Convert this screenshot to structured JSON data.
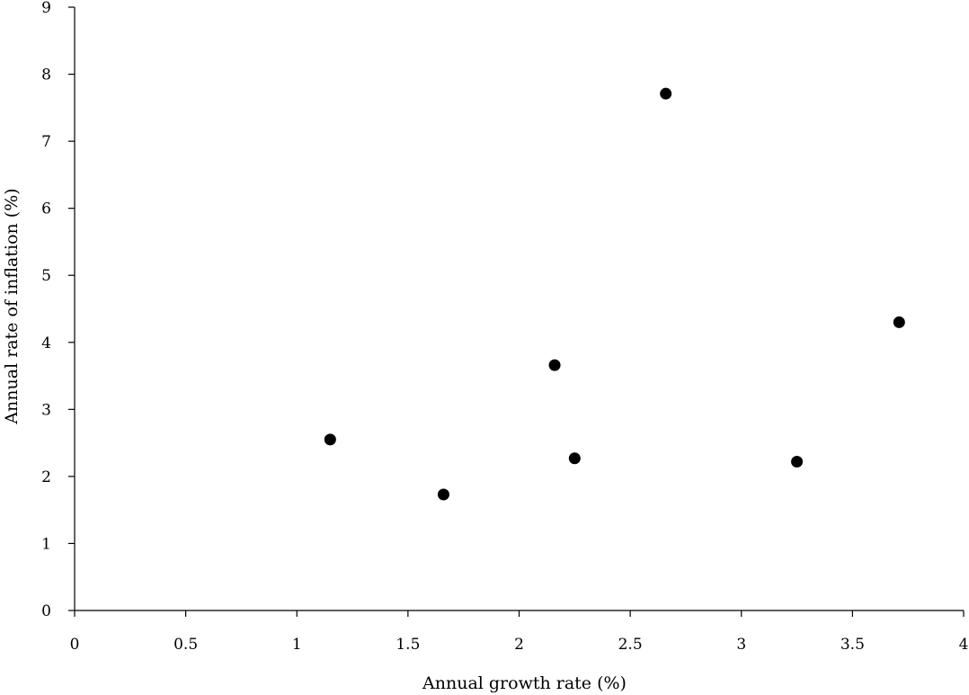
{
  "chart_data": {
    "type": "scatter",
    "title": "",
    "xlabel": "Annual growth rate (%)",
    "ylabel": "Annual rate of inflation (%)",
    "xlim": [
      0,
      4
    ],
    "ylim": [
      0,
      9
    ],
    "x_ticks": [
      0,
      0.5,
      1,
      1.5,
      2,
      2.5,
      3,
      3.5,
      4
    ],
    "x_tick_labels": [
      "0",
      "0.5",
      "1",
      "1.5",
      "2",
      "2.5",
      "3",
      "3.5",
      "4"
    ],
    "y_ticks": [
      0,
      1,
      2,
      3,
      4,
      5,
      6,
      7,
      8,
      9
    ],
    "y_tick_labels": [
      "0",
      "1",
      "2",
      "3",
      "4",
      "5",
      "6",
      "7",
      "8",
      "9"
    ],
    "grid": false,
    "legend": "none",
    "marker_color": "#000000",
    "points": [
      {
        "x": 1.15,
        "y": 2.55
      },
      {
        "x": 1.66,
        "y": 1.73
      },
      {
        "x": 2.16,
        "y": 3.66
      },
      {
        "x": 2.25,
        "y": 2.27
      },
      {
        "x": 2.66,
        "y": 7.71
      },
      {
        "x": 3.25,
        "y": 2.22
      },
      {
        "x": 3.71,
        "y": 4.3
      }
    ]
  }
}
